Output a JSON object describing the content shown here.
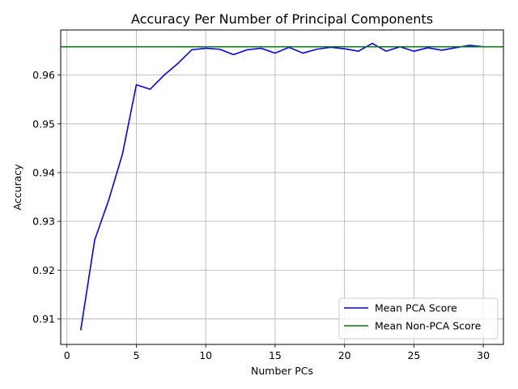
{
  "chart_data": {
    "type": "line",
    "title": "Accuracy Per Number of Principal Components",
    "xlabel": "Number PCs",
    "ylabel": "Accuracy",
    "xlim": [
      -0.45,
      31.45
    ],
    "ylim": [
      0.90475,
      0.96925
    ],
    "xticks": [
      0,
      5,
      10,
      15,
      20,
      25,
      30
    ],
    "yticks": [
      0.91,
      0.92,
      0.93,
      0.94,
      0.95,
      0.96
    ],
    "grid": true,
    "legend_position": "lower-right",
    "series": [
      {
        "name": "Mean PCA Score",
        "color": "#0000ff",
        "x": [
          1,
          2,
          3,
          4,
          5,
          6,
          7,
          8,
          9,
          10,
          11,
          12,
          13,
          14,
          15,
          16,
          17,
          18,
          19,
          20,
          21,
          22,
          23,
          24,
          25,
          26,
          27,
          28,
          29,
          30
        ],
        "y": [
          0.9078,
          0.9262,
          0.9343,
          0.9438,
          0.958,
          0.9571,
          0.96,
          0.9624,
          0.9652,
          0.9655,
          0.9653,
          0.9642,
          0.9652,
          0.9655,
          0.9645,
          0.9657,
          0.9645,
          0.9653,
          0.9657,
          0.9654,
          0.9649,
          0.9665,
          0.9649,
          0.9658,
          0.9649,
          0.9656,
          0.9651,
          0.9656,
          0.9661,
          0.9658
        ]
      },
      {
        "name": "Mean Non-PCA Score",
        "color": "#008000",
        "constant": 0.9658
      }
    ]
  }
}
